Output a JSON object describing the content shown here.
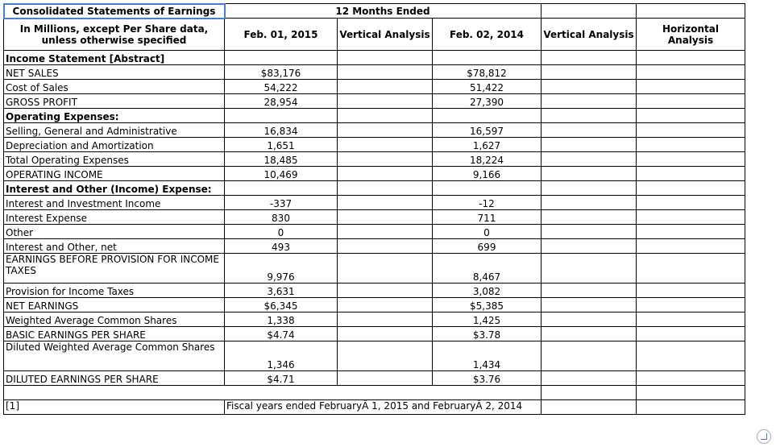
{
  "header": {
    "title": "Consolidated Statements of Earnings",
    "period": "12 Months Ended",
    "units": "In Millions, except Per Share data, unless otherwise specified",
    "columns": [
      "Feb. 01, 2015",
      "Vertical Analysis",
      "Feb. 02, 2014",
      "Vertical Analysis",
      "Horizontal Analysis"
    ]
  },
  "rows": [
    {
      "label": "Income Statement [Abstract]",
      "bold": true,
      "a": "",
      "b": ""
    },
    {
      "label": "NET SALES",
      "a": "$83,176",
      "b": "$78,812"
    },
    {
      "label": "Cost of Sales",
      "a": "54,222",
      "b": "51,422"
    },
    {
      "label": "GROSS PROFIT",
      "a": "28,954",
      "b": "27,390"
    },
    {
      "label": "Operating Expenses:",
      "bold": true,
      "a": "",
      "b": ""
    },
    {
      "label": "Selling, General and Administrative",
      "a": "16,834",
      "b": "16,597"
    },
    {
      "label": "Depreciation and Amortization",
      "a": "1,651",
      "b": "1,627"
    },
    {
      "label": "Total Operating Expenses",
      "a": "18,485",
      "b": "18,224"
    },
    {
      "label": "OPERATING INCOME",
      "a": "10,469",
      "b": "9,166"
    },
    {
      "label": "Interest and Other (Income) Expense:",
      "bold": true,
      "a": "",
      "b": ""
    },
    {
      "label": "Interest and Investment Income",
      "a": "-337",
      "b": "-12"
    },
    {
      "label": "Interest Expense",
      "a": "830",
      "b": "711"
    },
    {
      "label": "Other",
      "a": "0",
      "b": "0"
    },
    {
      "label": "Interest and Other, net",
      "a": "493",
      "b": "699"
    },
    {
      "label": "EARNINGS BEFORE PROVISION FOR INCOME TAXES",
      "tall": true,
      "a": "9,976",
      "b": "8,467"
    },
    {
      "label": "Provision for Income Taxes",
      "a": "3,631",
      "b": "3,082"
    },
    {
      "label": "NET EARNINGS",
      "a": "$6,345",
      "b": "$5,385"
    },
    {
      "label": "Weighted Average Common Shares",
      "a": "1,338",
      "b": "1,425"
    },
    {
      "label": "BASIC EARNINGS PER SHARE",
      "a": "$4.74",
      "b": "$3.78"
    },
    {
      "label": "Diluted Weighted Average Common Shares",
      "tall": true,
      "a": "1,346",
      "b": "1,434"
    },
    {
      "label": "DILUTED EARNINGS PER SHARE",
      "a": "$4.71",
      "b": "$3.76"
    }
  ],
  "footnote": {
    "ref": "[1]",
    "text": "Fiscal years ended FebruaryÂ 1, 2015 and FebruaryÂ 2, 2014"
  }
}
